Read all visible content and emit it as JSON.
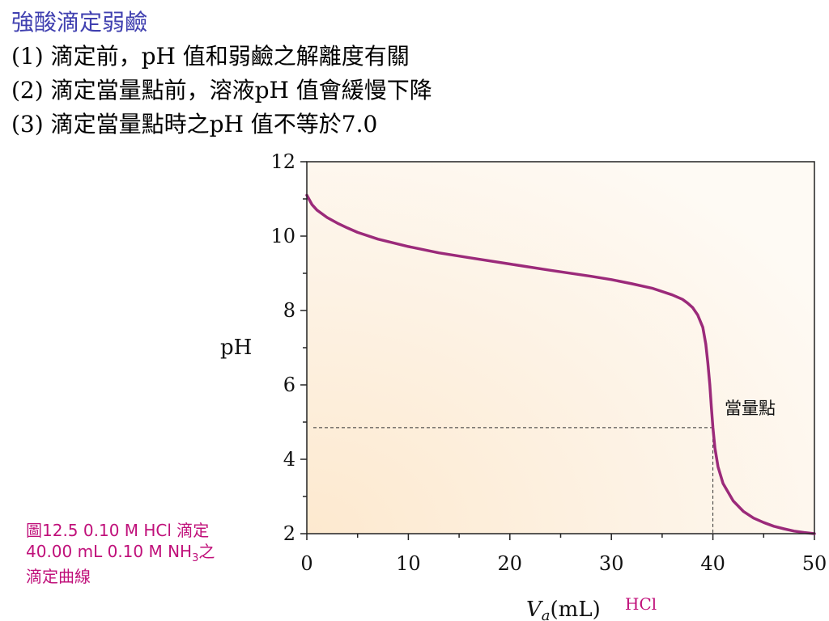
{
  "slide": {
    "heading": "強酸滴定弱鹼",
    "points": [
      "(1) 滴定前，pH 值和弱鹼之解離度有關",
      "(2) 滴定當量點前，溶液pH 值會緩慢下降",
      "(3) 滴定當量點時之pH 值不等於7.0"
    ],
    "caption": {
      "line1": "圖12.5  0.10 M HCl 滴定",
      "line2_pre": "40.00 mL 0.10 M NH",
      "line2_sub": "3",
      "line2_post": "之",
      "line3": "滴定曲線"
    }
  },
  "chart_data": {
    "type": "line",
    "ylabel": "pH",
    "xlabel_symbol": "V",
    "xlabel_sub": "a",
    "xlabel_unit": "(mL)",
    "xlabel_note": "HCl",
    "xlim": [
      0,
      50
    ],
    "ylim": [
      2,
      12
    ],
    "x_ticks": [
      0,
      10,
      20,
      30,
      40,
      50
    ],
    "y_ticks": [
      2,
      4,
      6,
      8,
      10,
      12
    ],
    "series": [
      {
        "color": "#9b2a7a",
        "points": [
          [
            0,
            11.1
          ],
          [
            0.5,
            10.85
          ],
          [
            1,
            10.7
          ],
          [
            2,
            10.5
          ],
          [
            3,
            10.35
          ],
          [
            4,
            10.22
          ],
          [
            5,
            10.1
          ],
          [
            7,
            9.92
          ],
          [
            10,
            9.72
          ],
          [
            13,
            9.55
          ],
          [
            16,
            9.42
          ],
          [
            20,
            9.25
          ],
          [
            24,
            9.08
          ],
          [
            28,
            8.92
          ],
          [
            30,
            8.83
          ],
          [
            32,
            8.72
          ],
          [
            34,
            8.6
          ],
          [
            36,
            8.42
          ],
          [
            37,
            8.3
          ],
          [
            37.5,
            8.2
          ],
          [
            38,
            8.08
          ],
          [
            38.5,
            7.88
          ],
          [
            39,
            7.55
          ],
          [
            39.3,
            7.1
          ],
          [
            39.5,
            6.6
          ],
          [
            39.7,
            6.0
          ],
          [
            39.85,
            5.4
          ],
          [
            40,
            4.85
          ],
          [
            40.2,
            4.3
          ],
          [
            40.5,
            3.8
          ],
          [
            41,
            3.35
          ],
          [
            42,
            2.88
          ],
          [
            43,
            2.6
          ],
          [
            44,
            2.42
          ],
          [
            45,
            2.3
          ],
          [
            46,
            2.2
          ],
          [
            47,
            2.13
          ],
          [
            48,
            2.07
          ],
          [
            49,
            2.03
          ],
          [
            50,
            2.0
          ]
        ]
      }
    ],
    "equivalence_point": {
      "x": 40,
      "y": 4.85,
      "label": "當量點"
    },
    "background": "#fdf1e0"
  }
}
